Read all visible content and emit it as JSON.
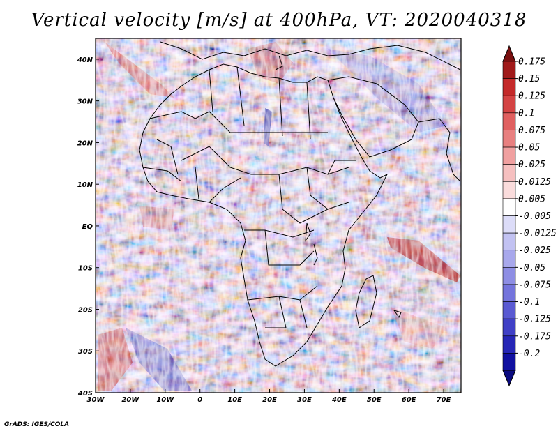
{
  "title": "Vertical velocity [m/s] at 400hPa, VT: 2020040318",
  "credit": "GrADS: IGES/COLA",
  "lon_labels": [
    "30W",
    "20W",
    "10W",
    "0",
    "10E",
    "20E",
    "30E",
    "40E",
    "50E",
    "60E",
    "70E"
  ],
  "lon_values": [
    -30,
    -20,
    -10,
    0,
    10,
    20,
    30,
    40,
    50,
    60,
    70
  ],
  "lat_labels": [
    "40N",
    "30N",
    "20N",
    "10N",
    "EQ",
    "10S",
    "20S",
    "30S",
    "40S"
  ],
  "lat_values": [
    40,
    30,
    20,
    10,
    0,
    -10,
    -20,
    -30,
    -40
  ],
  "extent": {
    "lon_min": -30,
    "lon_max": 75,
    "lat_min": -40,
    "lat_max": 45
  },
  "colorbar": {
    "labels": [
      "0.175",
      "0.15",
      "0.125",
      "0.1",
      "0.075",
      "0.05",
      "0.025",
      "0.0125",
      "0.005",
      "-0.005",
      "-0.0125",
      "-0.025",
      "-0.05",
      "-0.075",
      "-0.1",
      "-0.125",
      "-0.175",
      "-0.2"
    ],
    "colors": [
      "#a01a1a",
      "#c42a2a",
      "#d44444",
      "#e06060",
      "#e88080",
      "#f0a0a0",
      "#f6c0c0",
      "#fadcdc",
      "#ffffff",
      "#dcdcf8",
      "#c2c2f2",
      "#a8a8ec",
      "#8e8ee4",
      "#7474dc",
      "#5a5ad2",
      "#4040c6",
      "#2626b6",
      "#1010a0"
    ],
    "top_color": "#7a1010",
    "bottom_color": "#0a0a80"
  }
}
